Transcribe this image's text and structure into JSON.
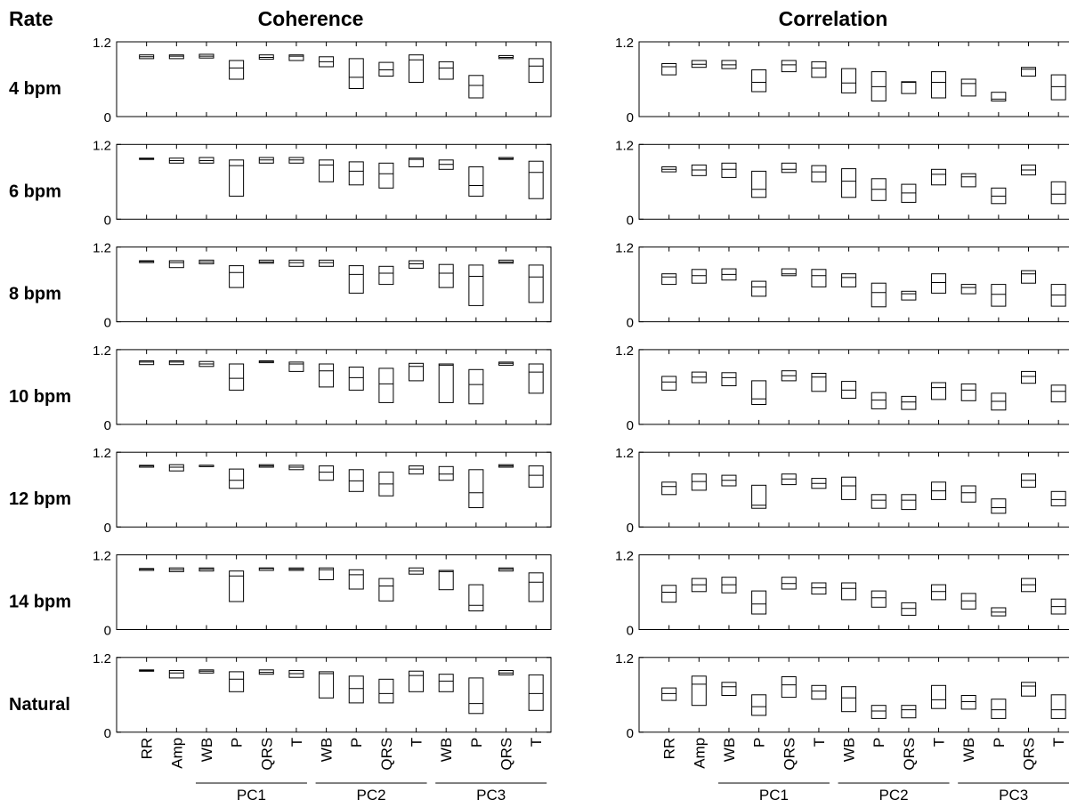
{
  "header": {
    "rate_label": "Rate"
  },
  "rates": [
    "4 bpm",
    "6 bpm",
    "8 bpm",
    "10 bpm",
    "12 bpm",
    "14 bpm",
    "Natural"
  ],
  "x_labels": [
    "RR",
    "Amp",
    "WB",
    "P",
    "QRS",
    "T",
    "WB",
    "P",
    "QRS",
    "T",
    "WB",
    "P",
    "QRS",
    "T"
  ],
  "groups": [
    "PC1",
    "PC2",
    "PC3"
  ],
  "chart_data": [
    {
      "type": "box",
      "title": "Coherence",
      "ylim": [
        0,
        1.2
      ],
      "yticks": [
        "0",
        "1.2"
      ],
      "rows": [
        [
          [
            0.93,
            0.99,
            0.96
          ],
          [
            0.93,
            0.99,
            0.97
          ],
          [
            0.94,
            1.0,
            0.97
          ],
          [
            0.6,
            0.9,
            0.78
          ],
          [
            0.92,
            0.99,
            0.95
          ],
          [
            0.9,
            0.99,
            0.97
          ],
          [
            0.8,
            0.96,
            0.88
          ],
          [
            0.45,
            0.93,
            0.63
          ],
          [
            0.65,
            0.87,
            0.75
          ],
          [
            0.55,
            0.99,
            0.91
          ],
          [
            0.6,
            0.88,
            0.78
          ],
          [
            0.3,
            0.66,
            0.5
          ],
          [
            0.93,
            0.98,
            0.95
          ],
          [
            0.55,
            0.93,
            0.81
          ]
        ],
        [
          [
            0.96,
            0.98,
            0.97
          ],
          [
            0.9,
            0.98,
            0.94
          ],
          [
            0.9,
            0.99,
            0.94
          ],
          [
            0.37,
            0.95,
            0.86
          ],
          [
            0.9,
            0.99,
            0.95
          ],
          [
            0.9,
            0.99,
            0.95
          ],
          [
            0.6,
            0.95,
            0.87
          ],
          [
            0.55,
            0.92,
            0.77
          ],
          [
            0.5,
            0.9,
            0.73
          ],
          [
            0.84,
            0.98,
            0.96
          ],
          [
            0.8,
            0.95,
            0.88
          ],
          [
            0.37,
            0.84,
            0.54
          ],
          [
            0.96,
            0.99,
            0.97
          ],
          [
            0.33,
            0.93,
            0.75
          ]
        ],
        [
          [
            0.95,
            0.98,
            0.97
          ],
          [
            0.87,
            0.98,
            0.95
          ],
          [
            0.93,
            0.99,
            0.96
          ],
          [
            0.55,
            0.9,
            0.79
          ],
          [
            0.94,
            0.99,
            0.96
          ],
          [
            0.89,
            0.99,
            0.95
          ],
          [
            0.89,
            0.99,
            0.95
          ],
          [
            0.46,
            0.9,
            0.76
          ],
          [
            0.6,
            0.89,
            0.78
          ],
          [
            0.86,
            0.98,
            0.93
          ],
          [
            0.55,
            0.92,
            0.78
          ],
          [
            0.26,
            0.91,
            0.73
          ],
          [
            0.94,
            0.99,
            0.96
          ],
          [
            0.31,
            0.91,
            0.72
          ]
        ],
        [
          [
            0.96,
            1.02,
            1.0
          ],
          [
            0.96,
            1.02,
            1.0
          ],
          [
            0.93,
            1.01,
            0.97
          ],
          [
            0.55,
            0.97,
            0.74
          ],
          [
            0.99,
            1.02,
            1.01
          ],
          [
            0.85,
            1.0,
            0.97
          ],
          [
            0.6,
            0.97,
            0.86
          ],
          [
            0.55,
            0.92,
            0.75
          ],
          [
            0.35,
            0.9,
            0.65
          ],
          [
            0.7,
            0.98,
            0.93
          ],
          [
            0.35,
            0.97,
            0.95
          ],
          [
            0.33,
            0.88,
            0.64
          ],
          [
            0.95,
            1.0,
            0.98
          ],
          [
            0.5,
            0.97,
            0.84
          ]
        ],
        [
          [
            0.96,
            0.99,
            0.98
          ],
          [
            0.9,
            1.0,
            0.96
          ],
          [
            0.98,
            0.99,
            0.99
          ],
          [
            0.62,
            0.93,
            0.75
          ],
          [
            0.96,
            1.0,
            0.98
          ],
          [
            0.92,
            0.99,
            0.96
          ],
          [
            0.75,
            0.98,
            0.88
          ],
          [
            0.57,
            0.92,
            0.74
          ],
          [
            0.5,
            0.88,
            0.69
          ],
          [
            0.85,
            0.98,
            0.93
          ],
          [
            0.75,
            0.97,
            0.85
          ],
          [
            0.31,
            0.92,
            0.55
          ],
          [
            0.96,
            1.0,
            0.98
          ],
          [
            0.64,
            0.98,
            0.83
          ]
        ],
        [
          [
            0.95,
            0.98,
            0.97
          ],
          [
            0.93,
            0.99,
            0.96
          ],
          [
            0.94,
            0.99,
            0.97
          ],
          [
            0.45,
            0.94,
            0.86
          ],
          [
            0.95,
            0.99,
            0.98
          ],
          [
            0.95,
            0.99,
            0.97
          ],
          [
            0.8,
            0.99,
            0.96
          ],
          [
            0.65,
            0.96,
            0.88
          ],
          [
            0.46,
            0.82,
            0.7
          ],
          [
            0.89,
            0.99,
            0.94
          ],
          [
            0.64,
            0.95,
            0.93
          ],
          [
            0.3,
            0.72,
            0.39
          ],
          [
            0.94,
            0.99,
            0.97
          ],
          [
            0.45,
            0.91,
            0.76
          ]
        ],
        [
          [
            0.98,
            1.0,
            0.99
          ],
          [
            0.87,
            0.99,
            0.95
          ],
          [
            0.95,
            1.0,
            0.98
          ],
          [
            0.65,
            0.97,
            0.85
          ],
          [
            0.93,
            1.0,
            0.96
          ],
          [
            0.88,
            0.99,
            0.94
          ],
          [
            0.55,
            0.97,
            0.94
          ],
          [
            0.47,
            0.9,
            0.7
          ],
          [
            0.47,
            0.85,
            0.62
          ],
          [
            0.65,
            0.98,
            0.91
          ],
          [
            0.65,
            0.93,
            0.82
          ],
          [
            0.3,
            0.87,
            0.46
          ],
          [
            0.92,
            0.99,
            0.95
          ],
          [
            0.35,
            0.92,
            0.62
          ]
        ]
      ]
    },
    {
      "type": "box",
      "title": "Correlation",
      "ylim": [
        0,
        1.2
      ],
      "yticks": [
        "0",
        "1.2"
      ],
      "rows": [
        [
          [
            0.67,
            0.85,
            0.8
          ],
          [
            0.79,
            0.9,
            0.84
          ],
          [
            0.77,
            0.9,
            0.83
          ],
          [
            0.4,
            0.75,
            0.55
          ],
          [
            0.72,
            0.9,
            0.83
          ],
          [
            0.63,
            0.88,
            0.78
          ],
          [
            0.38,
            0.77,
            0.54
          ],
          [
            0.25,
            0.72,
            0.48
          ],
          [
            0.37,
            0.56,
            0.55
          ],
          [
            0.3,
            0.72,
            0.55
          ],
          [
            0.33,
            0.6,
            0.53
          ],
          [
            0.25,
            0.39,
            0.28
          ],
          [
            0.65,
            0.79,
            0.76
          ],
          [
            0.27,
            0.67,
            0.48
          ]
        ],
        [
          [
            0.76,
            0.84,
            0.8
          ],
          [
            0.7,
            0.87,
            0.79
          ],
          [
            0.67,
            0.9,
            0.8
          ],
          [
            0.35,
            0.77,
            0.48
          ],
          [
            0.75,
            0.9,
            0.8
          ],
          [
            0.6,
            0.86,
            0.76
          ],
          [
            0.35,
            0.81,
            0.61
          ],
          [
            0.3,
            0.65,
            0.48
          ],
          [
            0.27,
            0.56,
            0.42
          ],
          [
            0.55,
            0.8,
            0.72
          ],
          [
            0.52,
            0.73,
            0.68
          ],
          [
            0.25,
            0.5,
            0.37
          ],
          [
            0.71,
            0.87,
            0.79
          ],
          [
            0.25,
            0.6,
            0.4
          ]
        ],
        [
          [
            0.6,
            0.77,
            0.72
          ],
          [
            0.62,
            0.84,
            0.74
          ],
          [
            0.67,
            0.85,
            0.76
          ],
          [
            0.41,
            0.65,
            0.56
          ],
          [
            0.74,
            0.85,
            0.77
          ],
          [
            0.56,
            0.84,
            0.74
          ],
          [
            0.56,
            0.77,
            0.71
          ],
          [
            0.24,
            0.62,
            0.47
          ],
          [
            0.35,
            0.49,
            0.45
          ],
          [
            0.46,
            0.77,
            0.63
          ],
          [
            0.45,
            0.6,
            0.55
          ],
          [
            0.25,
            0.6,
            0.44
          ],
          [
            0.62,
            0.82,
            0.77
          ],
          [
            0.25,
            0.6,
            0.43
          ]
        ],
        [
          [
            0.55,
            0.77,
            0.68
          ],
          [
            0.67,
            0.84,
            0.76
          ],
          [
            0.62,
            0.83,
            0.75
          ],
          [
            0.32,
            0.7,
            0.41
          ],
          [
            0.7,
            0.86,
            0.78
          ],
          [
            0.53,
            0.82,
            0.76
          ],
          [
            0.42,
            0.69,
            0.55
          ],
          [
            0.25,
            0.51,
            0.39
          ],
          [
            0.24,
            0.45,
            0.36
          ],
          [
            0.4,
            0.67,
            0.59
          ],
          [
            0.38,
            0.65,
            0.55
          ],
          [
            0.23,
            0.5,
            0.37
          ],
          [
            0.66,
            0.85,
            0.77
          ],
          [
            0.36,
            0.63,
            0.53
          ]
        ],
        [
          [
            0.52,
            0.72,
            0.65
          ],
          [
            0.59,
            0.85,
            0.73
          ],
          [
            0.66,
            0.83,
            0.75
          ],
          [
            0.3,
            0.67,
            0.35
          ],
          [
            0.68,
            0.85,
            0.77
          ],
          [
            0.62,
            0.78,
            0.7
          ],
          [
            0.44,
            0.8,
            0.66
          ],
          [
            0.3,
            0.52,
            0.43
          ],
          [
            0.28,
            0.52,
            0.43
          ],
          [
            0.44,
            0.72,
            0.58
          ],
          [
            0.4,
            0.66,
            0.55
          ],
          [
            0.22,
            0.45,
            0.31
          ],
          [
            0.64,
            0.85,
            0.75
          ],
          [
            0.34,
            0.57,
            0.44
          ]
        ],
        [
          [
            0.44,
            0.71,
            0.6
          ],
          [
            0.61,
            0.82,
            0.72
          ],
          [
            0.59,
            0.84,
            0.72
          ],
          [
            0.25,
            0.62,
            0.41
          ],
          [
            0.65,
            0.84,
            0.74
          ],
          [
            0.57,
            0.75,
            0.67
          ],
          [
            0.48,
            0.75,
            0.66
          ],
          [
            0.36,
            0.62,
            0.51
          ],
          [
            0.23,
            0.43,
            0.34
          ],
          [
            0.48,
            0.72,
            0.61
          ],
          [
            0.33,
            0.58,
            0.46
          ],
          [
            0.22,
            0.35,
            0.28
          ],
          [
            0.61,
            0.82,
            0.72
          ],
          [
            0.25,
            0.49,
            0.37
          ]
        ],
        [
          [
            0.51,
            0.71,
            0.62
          ],
          [
            0.43,
            0.9,
            0.77
          ],
          [
            0.59,
            0.8,
            0.73
          ],
          [
            0.27,
            0.6,
            0.41
          ],
          [
            0.56,
            0.89,
            0.76
          ],
          [
            0.53,
            0.75,
            0.66
          ],
          [
            0.33,
            0.73,
            0.55
          ],
          [
            0.22,
            0.43,
            0.34
          ],
          [
            0.23,
            0.43,
            0.36
          ],
          [
            0.38,
            0.75,
            0.52
          ],
          [
            0.37,
            0.59,
            0.49
          ],
          [
            0.22,
            0.53,
            0.36
          ],
          [
            0.58,
            0.8,
            0.74
          ],
          [
            0.22,
            0.6,
            0.36
          ]
        ]
      ]
    }
  ]
}
